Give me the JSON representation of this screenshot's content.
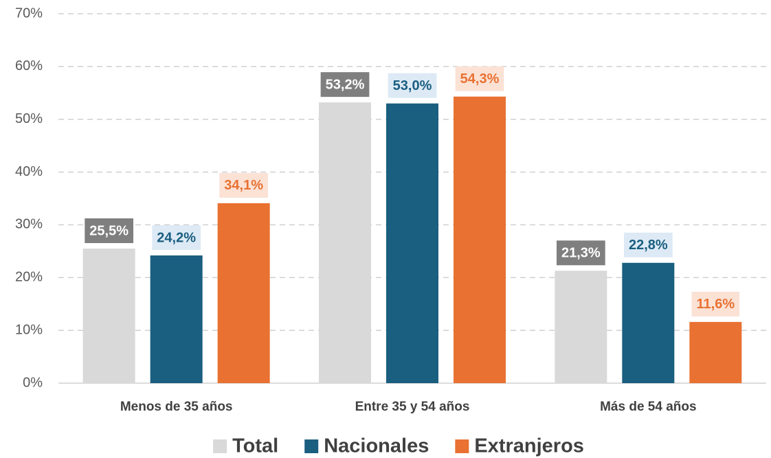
{
  "chart_data": {
    "type": "bar",
    "categories": [
      "Menos de 35 años",
      "Entre 35 y 54 años",
      "Más de 54 años"
    ],
    "series": [
      {
        "name": "Total",
        "color": "#d9d9d9",
        "values": [
          25.5,
          53.2,
          21.3
        ],
        "value_labels": [
          "25,5%",
          "53,2%",
          "21,3%"
        ]
      },
      {
        "name": "Nacionales",
        "color": "#1a5e80",
        "values": [
          24.2,
          53.0,
          22.8
        ],
        "value_labels": [
          "24,2%",
          "53,0%",
          "22,8%"
        ]
      },
      {
        "name": "Extranjeros",
        "color": "#e97132",
        "values": [
          34.1,
          54.3,
          11.6
        ],
        "value_labels": [
          "34,1%",
          "54,3%",
          "11,6%"
        ]
      }
    ],
    "ylim": [
      0,
      70
    ],
    "yticks": [
      {
        "value": 0,
        "label": "0%"
      },
      {
        "value": 10,
        "label": "10%"
      },
      {
        "value": 20,
        "label": "20%"
      },
      {
        "value": 30,
        "label": "30%"
      },
      {
        "value": 40,
        "label": "40%"
      },
      {
        "value": 50,
        "label": "50%"
      },
      {
        "value": 60,
        "label": "60%"
      },
      {
        "value": 70,
        "label": "70%"
      }
    ],
    "grid": true,
    "legend": "bottom"
  }
}
